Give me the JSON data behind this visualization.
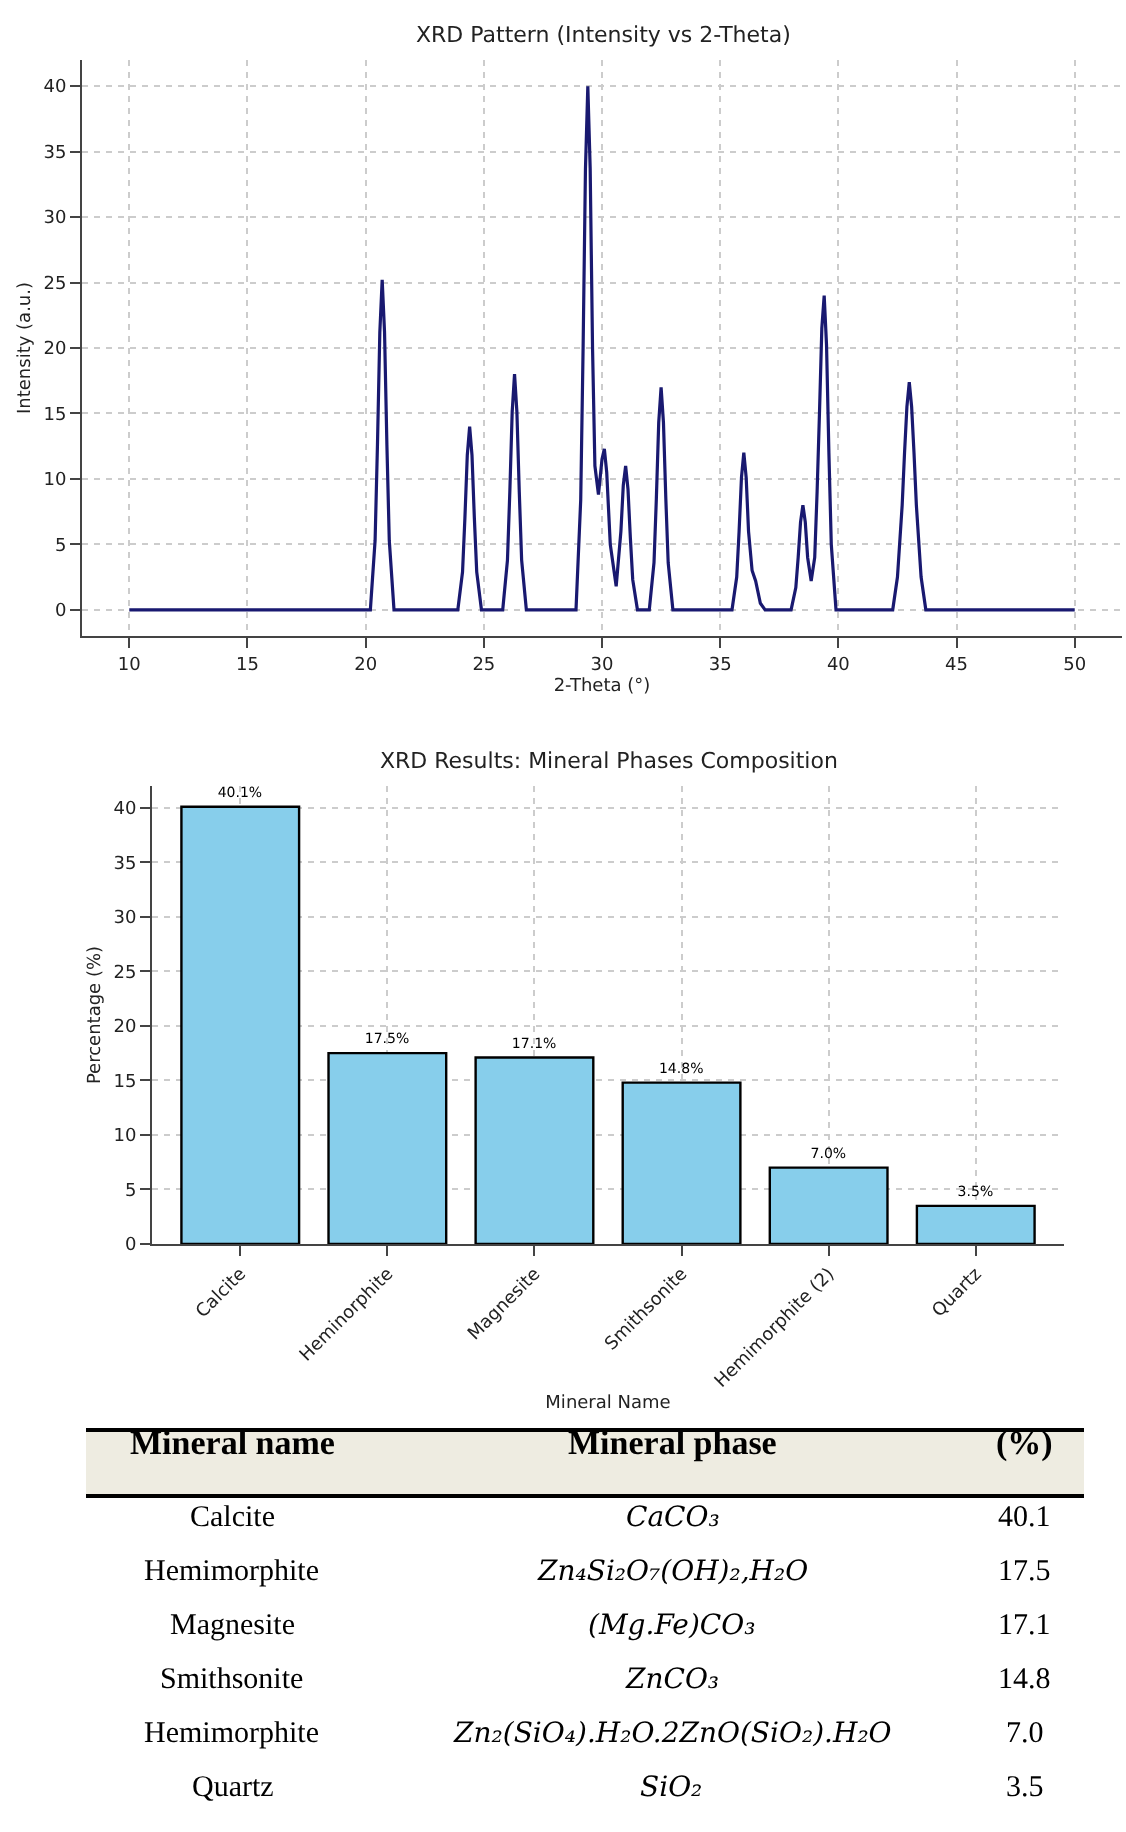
{
  "chart_data": [
    {
      "type": "line",
      "title": "XRD Pattern (Intensity vs 2-Theta)",
      "xlabel": "2-Theta (°)",
      "ylabel": "Intensity (a.u.)",
      "x": [
        10,
        20.2,
        20.4,
        20.5,
        20.6,
        20.7,
        20.8,
        20.9,
        21.0,
        21.2,
        23.9,
        24.1,
        24.2,
        24.3,
        24.4,
        24.5,
        24.6,
        24.7,
        24.9,
        25.8,
        26.0,
        26.1,
        26.2,
        26.3,
        26.4,
        26.5,
        26.6,
        26.8,
        28.9,
        29.1,
        29.2,
        29.3,
        29.4,
        29.5,
        29.6,
        29.7,
        29.85,
        30.0,
        30.1,
        30.2,
        30.35,
        30.6,
        30.8,
        30.9,
        31.0,
        31.1,
        31.2,
        31.3,
        31.5,
        32.0,
        32.2,
        32.3,
        32.4,
        32.5,
        32.6,
        32.7,
        32.8,
        33.0,
        35.5,
        35.7,
        35.8,
        35.9,
        36.0,
        36.1,
        36.2,
        36.35,
        36.5,
        36.7,
        36.9,
        38.0,
        38.2,
        38.3,
        38.4,
        38.5,
        38.6,
        38.7,
        38.85,
        39.0,
        39.1,
        39.2,
        39.3,
        39.4,
        39.5,
        39.6,
        39.7,
        39.9,
        42.3,
        42.5,
        42.7,
        42.8,
        42.9,
        43.0,
        43.1,
        43.2,
        43.3,
        43.5,
        43.7,
        50
      ],
      "series": [
        {
          "color": "#191970",
          "values": [
            0,
            0,
            5.3,
            12.6,
            21.2,
            25.2,
            21.2,
            12.6,
            5.3,
            0,
            0,
            2.9,
            7,
            11.8,
            14,
            11.8,
            7,
            2.9,
            0,
            0,
            3.8,
            9,
            15.1,
            18,
            15.1,
            9,
            3.8,
            0,
            0,
            8.4,
            20,
            33.7,
            40,
            33.7,
            20,
            11,
            8.8,
            11.5,
            12.3,
            10.5,
            5,
            1.8,
            6,
            9.5,
            11,
            9.2,
            5.5,
            2.3,
            0,
            0,
            3.6,
            8.5,
            14.3,
            17,
            14.3,
            8.5,
            3.6,
            0,
            0,
            2.5,
            6,
            10.1,
            12,
            10.1,
            6,
            3,
            2.2,
            0.5,
            0,
            0,
            1.7,
            4,
            6.7,
            8,
            6.7,
            4,
            2.2,
            4,
            9,
            15,
            21.5,
            24,
            20.2,
            12,
            5,
            0,
            0,
            2.5,
            8,
            12,
            15.5,
            17.4,
            15.5,
            12,
            8,
            2.5,
            0,
            0
          ]
        }
      ],
      "xlim": [
        8,
        52
      ],
      "xticks": [
        10,
        15,
        20,
        25,
        30,
        35,
        40,
        45,
        50
      ],
      "ylim": [
        -2,
        42
      ],
      "yticks": [
        0,
        5,
        10,
        15,
        20,
        25,
        30,
        35,
        40
      ],
      "grid": true,
      "legend": false,
      "marker": "none",
      "line_style": "solid"
    },
    {
      "type": "bar",
      "title": "XRD Results: Mineral Phases Composition",
      "xlabel": "Mineral Name",
      "ylabel": "Percentage (%)",
      "categories": [
        "Calcite",
        "Heminorphite",
        "Magnesite",
        "Smithsonite",
        "Hemimorphite (2)",
        "Quartz"
      ],
      "values": [
        40.1,
        17.5,
        17.1,
        14.8,
        7.0,
        3.5
      ],
      "color": "#87ceeb",
      "value_labels": [
        "40.1%",
        "17.5%",
        "17.1%",
        "14.8%",
        "7.0%",
        "3.5%"
      ],
      "ylim": [
        0,
        42
      ],
      "yticks": [
        0,
        5,
        10,
        15,
        20,
        25,
        30,
        35,
        40
      ],
      "grid": true,
      "legend": false
    },
    {
      "type": "other",
      "categories": [
        "Calcite",
        "Hemimorphite",
        "Magnesite",
        "Smithsonite",
        "Hemimorphite",
        "Quartz"
      ],
      "value_labels": [
        "40.1",
        "17.5",
        "17.1",
        "14.8",
        "7.0",
        "3.5"
      ],
      "annotations": [
        "Mineral name",
        "Mineral phase",
        "(%)",
        "CaCO₃",
        "Zn₄Si₂O₇(OH)₂,H₂O",
        "(Mg.Fe)CO₃",
        "ZnCO₃",
        "Zn₂(SiO₄).H₂O.2ZnO(SiO₂).H₂O",
        "SiO₂"
      ]
    }
  ]
}
